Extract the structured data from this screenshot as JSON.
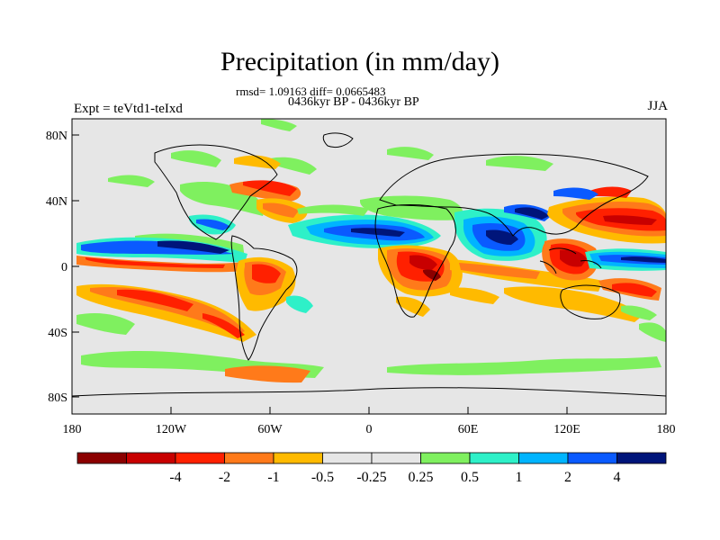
{
  "figure": {
    "title": "Precipitation (in mm/day)",
    "stats": "rmsd= 1.09163 diff= 0.0665483",
    "period": "0436kyr BP - 0436kyr BP",
    "experiment": "Expt = teVtd1-teIxd",
    "season": "JJA"
  },
  "axes": {
    "lat_ticks": [
      "80N",
      "40N",
      "0",
      "40S",
      "80S"
    ],
    "lon_ticks": [
      "180",
      "120W",
      "60W",
      "0",
      "60E",
      "120E",
      "180"
    ]
  },
  "colorbar": {
    "colors": [
      "#8b0000",
      "#c80000",
      "#ff2000",
      "#ff7a1a",
      "#ffba00",
      "#e6e6e6",
      "#e6e6e6",
      "#7ff05f",
      "#2ef0c8",
      "#00b4ff",
      "#0a5aff",
      "#00157a"
    ],
    "labels": [
      "-4",
      "-2",
      "-1",
      "-0.5",
      "-0.25",
      "0.25",
      "0.5",
      "1",
      "2",
      "4"
    ]
  },
  "colors": {
    "background": "#e6e6e6",
    "coastline": "#000000"
  }
}
